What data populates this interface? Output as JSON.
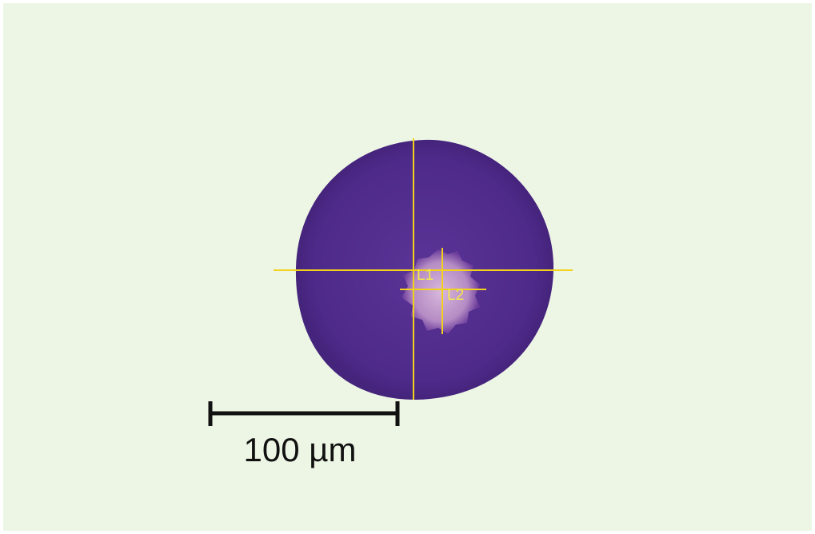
{
  "measurements": [
    {
      "label": "L1"
    },
    {
      "label": "L2"
    }
  ],
  "scale_bar": {
    "label": "100 µm"
  }
}
